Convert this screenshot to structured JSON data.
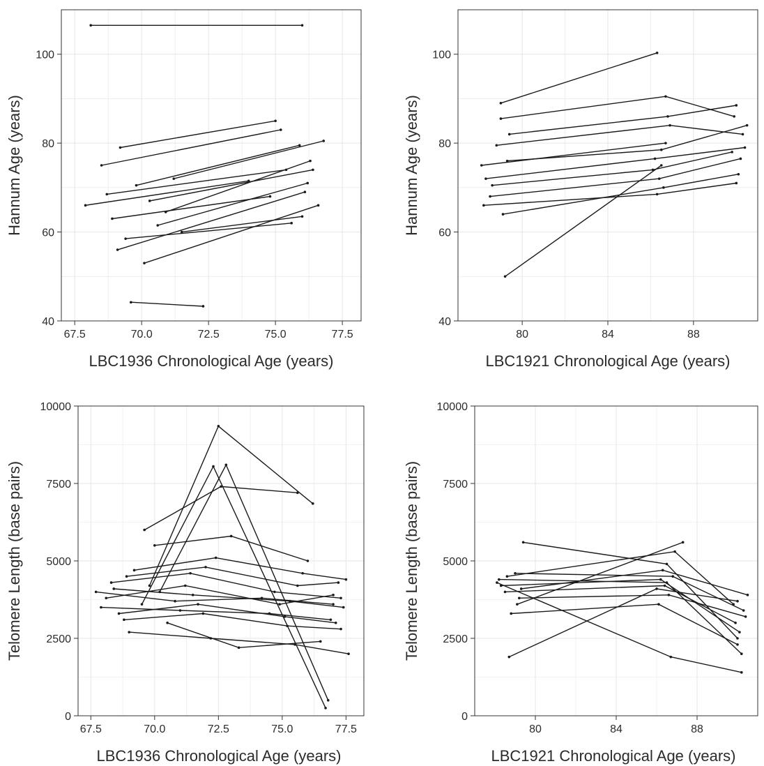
{
  "figure": {
    "panels": [
      {
        "id": "hannum-lbc1936",
        "xlabel": "LBC1936 Chronological Age (years)",
        "ylabel": "Hannum Age (years)"
      },
      {
        "id": "hannum-lbc1921",
        "xlabel": "LBC1921 Chronological Age (years)",
        "ylabel": "Hannum Age (years)"
      },
      {
        "id": "telomere-lbc1936",
        "xlabel": "LBC1936 Chronological Age (years)",
        "ylabel": "Telomere Length (base pairs)"
      },
      {
        "id": "telomere-lbc1921",
        "xlabel": "LBC1921 Chronological Age (years)",
        "ylabel": "Telomere Length (base pairs)"
      }
    ]
  },
  "colors": {
    "line": "#1a1a1a",
    "grid": "#e6e6e6",
    "axis": "#333333",
    "panel_border": "#333333"
  },
  "chart_data": [
    {
      "type": "line",
      "title": "",
      "xlabel": "LBC1936 Chronological Age (years)",
      "ylabel": "Hannum Age (years)",
      "xlim": [
        67.0,
        78.2
      ],
      "ylim": [
        40,
        110
      ],
      "xticks": [
        67.5,
        70.0,
        72.5,
        75.0,
        77.5
      ],
      "xtick_labels": [
        "67.5",
        "70.0",
        "72.5",
        "75.0",
        "77.5"
      ],
      "yticks": [
        40,
        60,
        80,
        100
      ],
      "ytick_labels": [
        "40",
        "60",
        "80",
        "100"
      ],
      "grid": true,
      "legend": "none",
      "series": [
        {
          "values": [
            [
              68.1,
              106.5
            ],
            [
              76.0,
              106.5
            ]
          ]
        },
        {
          "values": [
            [
              69.6,
              44.2
            ],
            [
              72.3,
              43.3
            ]
          ]
        },
        {
          "values": [
            [
              68.5,
              75.0
            ],
            [
              75.2,
              83.0
            ]
          ]
        },
        {
          "values": [
            [
              69.1,
              56.0
            ],
            [
              76.1,
              69.0
            ]
          ]
        },
        {
          "values": [
            [
              70.3,
              67.0
            ],
            [
              76.4,
              74.0
            ]
          ]
        },
        {
          "values": [
            [
              69.8,
              70.5
            ],
            [
              75.9,
              79.5
            ]
          ]
        },
        {
          "values": [
            [
              70.6,
              61.5
            ],
            [
              76.2,
              71.0
            ]
          ]
        },
        {
          "values": [
            [
              68.9,
              63.0
            ],
            [
              74.8,
              68.0
            ]
          ]
        },
        {
          "values": [
            [
              71.2,
              72.0
            ],
            [
              76.8,
              80.5
            ]
          ]
        },
        {
          "values": [
            [
              69.4,
              58.5
            ],
            [
              75.6,
              62.0
            ]
          ]
        },
        {
          "values": [
            [
              67.9,
              66.0
            ],
            [
              74.0,
              71.5
            ]
          ]
        },
        {
          "values": [
            [
              70.9,
              64.5
            ],
            [
              76.3,
              76.0
            ]
          ]
        },
        {
          "values": [
            [
              69.2,
              79.0
            ],
            [
              75.0,
              85.0
            ]
          ]
        },
        {
          "values": [
            [
              70.1,
              53.0
            ],
            [
              76.6,
              66.0
            ]
          ]
        },
        {
          "values": [
            [
              68.7,
              68.5
            ],
            [
              75.4,
              74.0
            ]
          ]
        },
        {
          "values": [
            [
              71.5,
              60.0
            ],
            [
              76.0,
              63.5
            ]
          ]
        }
      ]
    },
    {
      "type": "line",
      "title": "",
      "xlabel": "LBC1921 Chronological Age (years)",
      "ylabel": "Hannum Age (years)",
      "xlim": [
        77.0,
        91.0
      ],
      "ylim": [
        40,
        110
      ],
      "xticks": [
        80,
        84,
        88
      ],
      "xtick_labels": [
        "80",
        "84",
        "88"
      ],
      "yticks": [
        40,
        60,
        80,
        100
      ],
      "ytick_labels": [
        "40",
        "60",
        "80",
        "100"
      ],
      "grid": true,
      "legend": "none",
      "series": [
        {
          "values": [
            [
              79.0,
              89.0
            ],
            [
              86.3,
              100.3
            ]
          ]
        },
        {
          "values": [
            [
              79.2,
              50.0
            ],
            [
              86.5,
              75.0
            ]
          ]
        },
        {
          "values": [
            [
              78.1,
              75.0
            ],
            [
              86.7,
              80.0
            ]
          ]
        },
        {
          "values": [
            [
              78.5,
              68.0
            ],
            [
              86.4,
              72.0
            ],
            [
              90.2,
              76.5
            ]
          ]
        },
        {
          "values": [
            [
              79.4,
              82.0
            ],
            [
              86.8,
              86.0
            ],
            [
              90.0,
              88.5
            ]
          ]
        },
        {
          "values": [
            [
              78.3,
              72.0
            ],
            [
              86.2,
              76.5
            ],
            [
              90.4,
              79.0
            ]
          ]
        },
        {
          "values": [
            [
              79.1,
              64.0
            ],
            [
              86.6,
              70.0
            ],
            [
              90.1,
              73.0
            ]
          ]
        },
        {
          "values": [
            [
              78.8,
              79.5
            ],
            [
              86.9,
              84.0
            ],
            [
              90.3,
              82.0
            ]
          ]
        },
        {
          "values": [
            [
              78.6,
              70.5
            ],
            [
              86.1,
              74.0
            ],
            [
              89.8,
              78.0
            ]
          ]
        },
        {
          "values": [
            [
              79.3,
              76.0
            ],
            [
              86.5,
              78.5
            ],
            [
              90.5,
              84.0
            ]
          ]
        },
        {
          "values": [
            [
              78.2,
              66.0
            ],
            [
              86.3,
              68.5
            ],
            [
              90.0,
              71.0
            ]
          ]
        },
        {
          "values": [
            [
              79.0,
              85.5
            ],
            [
              86.7,
              90.5
            ],
            [
              89.9,
              86.0
            ]
          ]
        }
      ]
    },
    {
      "type": "line",
      "title": "",
      "xlabel": "LBC1936 Chronological Age (years)",
      "ylabel": "Telomere Length (base pairs)",
      "xlim": [
        67.0,
        78.2
      ],
      "ylim": [
        0,
        10000
      ],
      "xticks": [
        67.5,
        70.0,
        72.5,
        75.0,
        77.5
      ],
      "xtick_labels": [
        "67.5",
        "70.0",
        "72.5",
        "75.0",
        "77.5"
      ],
      "yticks": [
        0,
        2500,
        5000,
        7500,
        10000
      ],
      "ytick_labels": [
        "0",
        "2500",
        "5000",
        "7500",
        "10000"
      ],
      "grid": true,
      "legend": "none",
      "series": [
        {
          "values": [
            [
              69.8,
              4200
            ],
            [
              72.5,
              9350
            ],
            [
              76.2,
              6850
            ]
          ]
        },
        {
          "values": [
            [
              70.2,
              4000
            ],
            [
              72.8,
              8100
            ],
            [
              76.8,
              500
            ]
          ]
        },
        {
          "values": [
            [
              69.5,
              3600
            ],
            [
              72.3,
              8050
            ],
            [
              76.7,
              250
            ]
          ]
        },
        {
          "values": [
            [
              68.4,
              4100
            ],
            [
              71.5,
              3900
            ],
            [
              75.3,
              3700
            ],
            [
              77.4,
              3500
            ]
          ]
        },
        {
          "values": [
            [
              68.1,
              3800
            ],
            [
              71.2,
              4200
            ],
            [
              74.9,
              3600
            ],
            [
              77.0,
              3900
            ]
          ]
        },
        {
          "values": [
            [
              68.9,
              4500
            ],
            [
              72.0,
              4800
            ],
            [
              75.6,
              4200
            ],
            [
              77.2,
              4300
            ]
          ]
        },
        {
          "values": [
            [
              67.9,
              3500
            ],
            [
              71.0,
              3400
            ],
            [
              74.5,
              3300
            ],
            [
              76.9,
              3100
            ]
          ]
        },
        {
          "values": [
            [
              69.2,
              4700
            ],
            [
              72.4,
              5100
            ],
            [
              75.8,
              4600
            ],
            [
              77.5,
              4400
            ]
          ]
        },
        {
          "values": [
            [
              68.6,
              3300
            ],
            [
              71.7,
              3600
            ],
            [
              75.1,
              3200
            ],
            [
              77.1,
              3000
            ]
          ]
        },
        {
          "values": [
            [
              70.0,
              5500
            ],
            [
              73.0,
              5800
            ],
            [
              76.0,
              5000
            ]
          ]
        },
        {
          "values": [
            [
              69.0,
              2700
            ],
            [
              72.2,
              2500
            ],
            [
              75.5,
              2300
            ],
            [
              77.6,
              2000
            ]
          ]
        },
        {
          "values": [
            [
              68.3,
              4300
            ],
            [
              71.4,
              4600
            ],
            [
              74.7,
              4000
            ],
            [
              77.3,
              3800
            ]
          ]
        },
        {
          "values": [
            [
              69.6,
              6000
            ],
            [
              72.6,
              7400
            ],
            [
              75.6,
              7200
            ]
          ]
        },
        {
          "values": [
            [
              70.5,
              3000
            ],
            [
              73.3,
              2200
            ],
            [
              76.5,
              2400
            ]
          ]
        },
        {
          "values": [
            [
              67.7,
              4000
            ],
            [
              70.8,
              3700
            ],
            [
              74.2,
              3800
            ],
            [
              77.0,
              3600
            ]
          ]
        },
        {
          "values": [
            [
              68.8,
              3100
            ],
            [
              71.9,
              3300
            ],
            [
              75.2,
              2900
            ],
            [
              77.3,
              2800
            ]
          ]
        }
      ]
    },
    {
      "type": "line",
      "title": "",
      "xlabel": "LBC1921 Chronological Age (years)",
      "ylabel": "Telomere Length (base pairs)",
      "xlim": [
        77.0,
        91.0
      ],
      "ylim": [
        0,
        10000
      ],
      "xticks": [
        80,
        84,
        88
      ],
      "xtick_labels": [
        "80",
        "84",
        "88"
      ],
      "yticks": [
        0,
        2500,
        5000,
        7500,
        10000
      ],
      "ytick_labels": [
        "0",
        "2500",
        "5000",
        "7500",
        "10000"
      ],
      "grid": true,
      "legend": "none",
      "series": [
        {
          "values": [
            [
              78.7,
              1900
            ],
            [
              86.0,
              4100
            ],
            [
              90.0,
              3700
            ]
          ]
        },
        {
          "values": [
            [
              79.4,
              5600
            ],
            [
              86.5,
              4900
            ],
            [
              90.0,
              2500
            ]
          ]
        },
        {
          "values": [
            [
              78.1,
              4300
            ],
            [
              86.7,
              1900
            ],
            [
              90.2,
              1400
            ]
          ]
        },
        {
          "values": [
            [
              78.5,
              4000
            ],
            [
              86.4,
              4200
            ],
            [
              89.9,
              3000
            ]
          ]
        },
        {
          "values": [
            [
              79.0,
              4600
            ],
            [
              86.8,
              4500
            ],
            [
              90.3,
              3400
            ]
          ]
        },
        {
          "values": [
            [
              78.3,
              4200
            ],
            [
              86.2,
              4400
            ],
            [
              90.1,
              2700
            ]
          ]
        },
        {
          "values": [
            [
              79.2,
              3800
            ],
            [
              86.6,
              3900
            ],
            [
              90.4,
              3200
            ]
          ]
        },
        {
          "values": [
            [
              78.8,
              3300
            ],
            [
              86.1,
              3600
            ],
            [
              90.0,
              2300
            ]
          ]
        },
        {
          "values": [
            [
              78.6,
              4500
            ],
            [
              86.9,
              5300
            ],
            [
              89.8,
              3600
            ]
          ]
        },
        {
          "values": [
            [
              79.3,
              4100
            ],
            [
              86.3,
              4700
            ],
            [
              90.5,
              3900
            ]
          ]
        },
        {
          "values": [
            [
              78.2,
              4400
            ],
            [
              86.5,
              4300
            ],
            [
              90.2,
              2000
            ]
          ]
        },
        {
          "values": [
            [
              79.1,
              3600
            ],
            [
              87.3,
              5600
            ]
          ]
        }
      ]
    }
  ]
}
